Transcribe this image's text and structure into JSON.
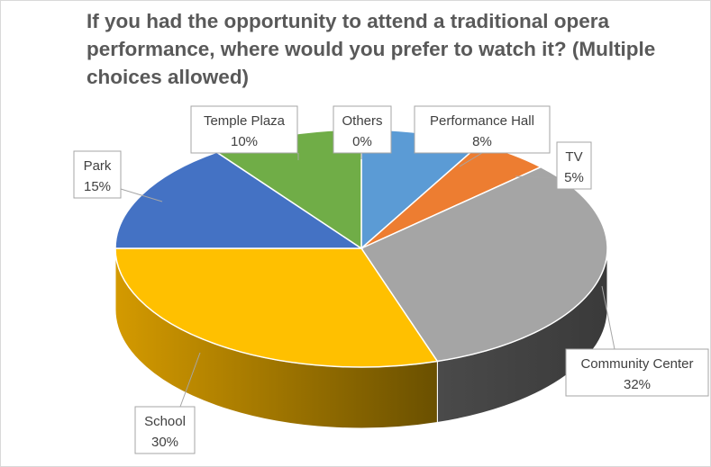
{
  "chart_data": {
    "type": "pie",
    "title": "If you had the opportunity to attend a traditional opera performance, where would you prefer to watch it? (Multiple choices allowed)",
    "slices": [
      {
        "label": "Others",
        "value": 0,
        "display": "0%",
        "color": "#5b9bd5"
      },
      {
        "label": "Performance Hall",
        "value": 8,
        "display": "8%",
        "color": "#5b9bd5"
      },
      {
        "label": "TV",
        "value": 5,
        "display": "5%",
        "color": "#ed7d31"
      },
      {
        "label": "Community Center",
        "value": 32,
        "display": "32%",
        "color": "#a5a5a5"
      },
      {
        "label": "School",
        "value": 30,
        "display": "30%",
        "color": "#ffc000"
      },
      {
        "label": "Park",
        "value": 15,
        "display": "15%",
        "color": "#4472c4"
      },
      {
        "label": "Temple Plaza",
        "value": 10,
        "display": "10%",
        "color": "#70ad47"
      }
    ],
    "legend": "none",
    "style": "3d-pie"
  }
}
